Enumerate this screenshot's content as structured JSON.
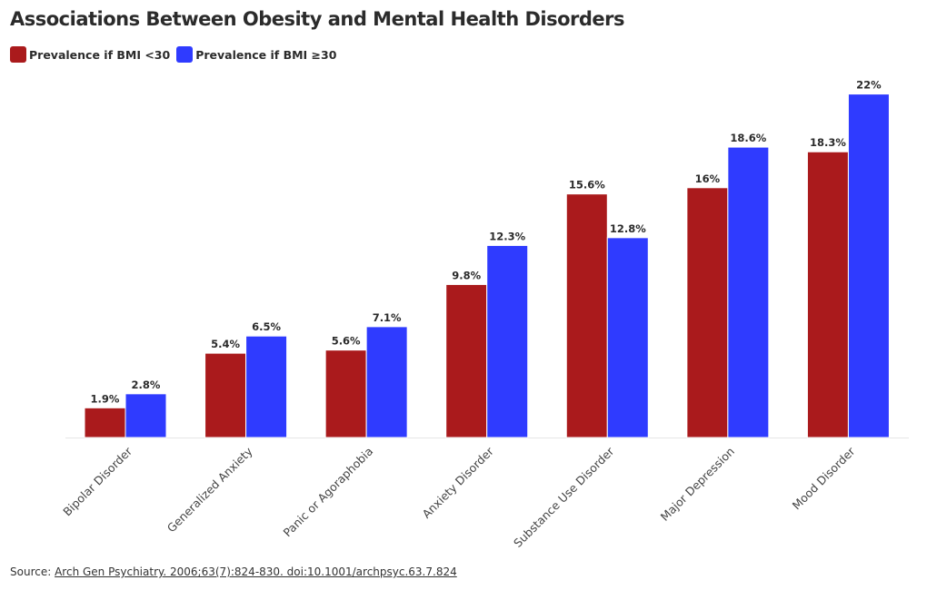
{
  "title": "Associations Between Obesity and Mental Health Disorders",
  "colors": {
    "series_1": "#aa1a1c",
    "series_2": "#2f3bff",
    "axis": "#e6e6e6",
    "text": "#2b2b2b"
  },
  "source": {
    "prefix": "Source:",
    "link_text": "Arch Gen Psychiatry. 2006;63(7):824-830. doi:10.1001/archpsyc.63.7.824"
  },
  "chart_data": {
    "type": "bar",
    "title": "Associations Between Obesity and Mental Health Disorders",
    "xlabel": "",
    "ylabel": "",
    "ylim": [
      0,
      23
    ],
    "grid": false,
    "legend": "top-left",
    "categories": [
      "Bipolar Disorder",
      "Generalized Anxiety",
      "Panic or Agoraphobia",
      "Anxiety Disorder",
      "Substance Use Disorder",
      "Major Depression",
      "Mood Disorder"
    ],
    "series": [
      {
        "name": "Prevalence if BMI <30",
        "color": "#aa1a1c",
        "values": [
          1.9,
          5.4,
          5.6,
          9.8,
          15.6,
          16,
          18.3
        ],
        "labels": [
          "1.9%",
          "5.4%",
          "5.6%",
          "9.8%",
          "15.6%",
          "16%",
          "18.3%"
        ]
      },
      {
        "name": "Prevalence if BMI ≥30",
        "color": "#2f3bff",
        "values": [
          2.8,
          6.5,
          7.1,
          12.3,
          12.8,
          18.6,
          22
        ],
        "labels": [
          "2.8%",
          "6.5%",
          "7.1%",
          "12.3%",
          "12.8%",
          "18.6%",
          "22%"
        ]
      }
    ]
  }
}
